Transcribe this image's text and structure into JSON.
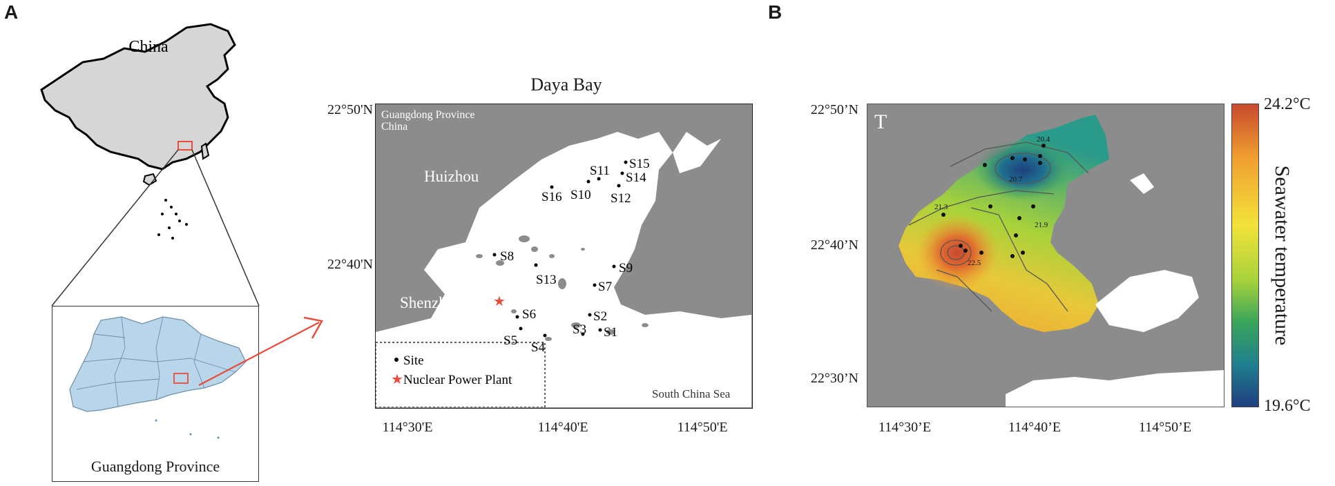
{
  "panels": {
    "a": {
      "letter": "A"
    },
    "b": {
      "letter": "B"
    }
  },
  "china_map": {
    "title": "China",
    "highlight_color": "#e74c3c"
  },
  "guangdong_inset": {
    "title": "Guangdong Province",
    "fill_color": "#b8d5ea",
    "arrow_color": "#e74c3c"
  },
  "daya_bay_map": {
    "title": "Daya Bay",
    "region_label": "Guangdong Province",
    "region_label_2": "China",
    "places": [
      "Huizhou",
      "Shenzhen",
      "South China Sea"
    ],
    "y_ticks": [
      "22°50'N",
      "22°40'N"
    ],
    "x_ticks": [
      "114°30'E",
      "114°40'E",
      "114°50'E"
    ],
    "sites": [
      {
        "label": "S1"
      },
      {
        "label": "S2"
      },
      {
        "label": "S3"
      },
      {
        "label": "S4"
      },
      {
        "label": "S5"
      },
      {
        "label": "S6"
      },
      {
        "label": "S7"
      },
      {
        "label": "S8"
      },
      {
        "label": "S9"
      },
      {
        "label": "S10"
      },
      {
        "label": "S11"
      },
      {
        "label": "S12"
      },
      {
        "label": "S13"
      },
      {
        "label": "S14"
      },
      {
        "label": "S15"
      },
      {
        "label": "S16"
      }
    ],
    "legend": {
      "site_label": "Site",
      "plant_label": "Nuclear Power Plant",
      "plant_color": "#e74c3c"
    }
  },
  "temperature_map": {
    "panel_label": "T",
    "y_ticks": [
      "22°50’N",
      "22°40’N",
      "22°30’N"
    ],
    "x_ticks": [
      "114°30’E",
      "114°40’E",
      "114°50’E"
    ],
    "contour_labels": [
      "20.4",
      "20.7",
      "21.3",
      "21.9",
      "22.5"
    ],
    "colorbar": {
      "max_label": "24.2°C",
      "min_label": "19.6°C",
      "title": "Seawater temperature",
      "max_value": 24.2,
      "min_value": 19.6,
      "colors": [
        "#1f3f7f",
        "#1f7f8f",
        "#3aa55a",
        "#a8d23a",
        "#f2e23a",
        "#f0a030",
        "#c84a2e"
      ]
    }
  }
}
